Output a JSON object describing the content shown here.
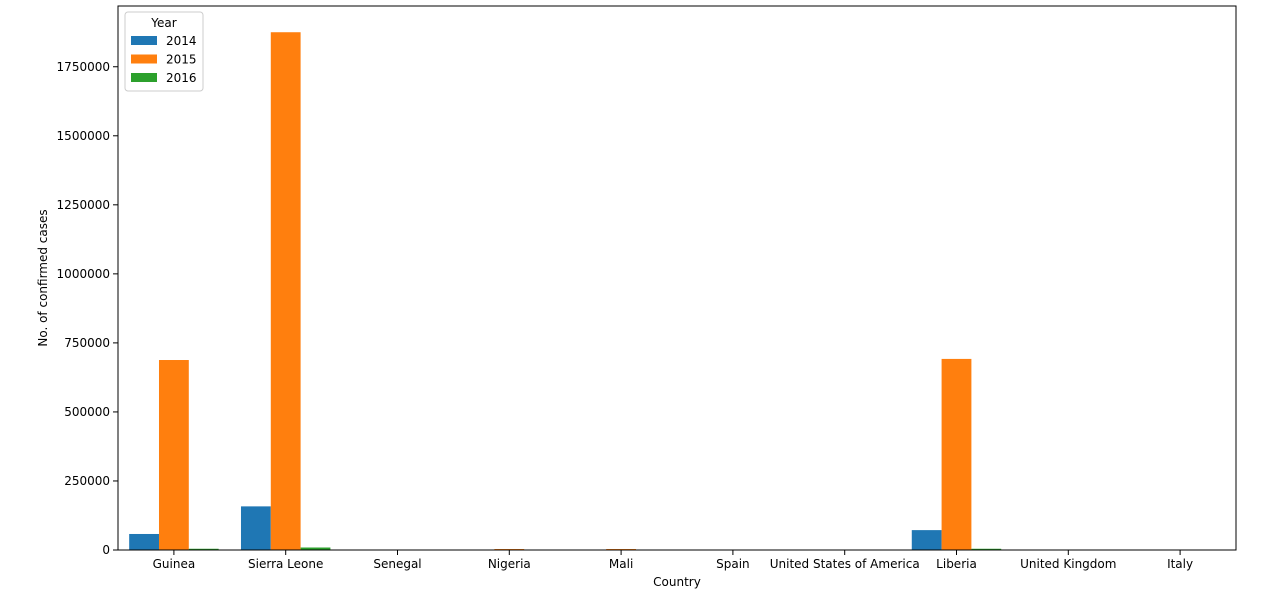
{
  "chart_data": {
    "type": "bar",
    "xlabel": "Country",
    "ylabel": "No. of confirmed cases",
    "ylim": [
      0,
      1970000
    ],
    "yticks": [
      0,
      250000,
      500000,
      750000,
      1000000,
      1250000,
      1500000,
      1750000
    ],
    "ytick_labels": [
      "0",
      "250000",
      "500000",
      "750000",
      "1000000",
      "1250000",
      "1500000",
      "1750000"
    ],
    "categories": [
      "Guinea",
      "Sierra Leone",
      "Senegal",
      "Nigeria",
      "Mali",
      "Spain",
      "United States of America",
      "Liberia",
      "United Kingdom",
      "Italy"
    ],
    "legend": {
      "title": "Year",
      "position": "top-left"
    },
    "series": [
      {
        "name": "2014",
        "color": "#1f77b4",
        "values": [
          58000,
          158000,
          0,
          0,
          0,
          0,
          0,
          72000,
          0,
          0
        ]
      },
      {
        "name": "2015",
        "color": "#ff7f0e",
        "values": [
          688000,
          1875000,
          0,
          3500,
          3500,
          0,
          0,
          692000,
          0,
          0
        ]
      },
      {
        "name": "2016",
        "color": "#2ca02c",
        "values": [
          4500,
          9000,
          0,
          0,
          0,
          0,
          0,
          4500,
          0,
          0
        ]
      }
    ]
  }
}
